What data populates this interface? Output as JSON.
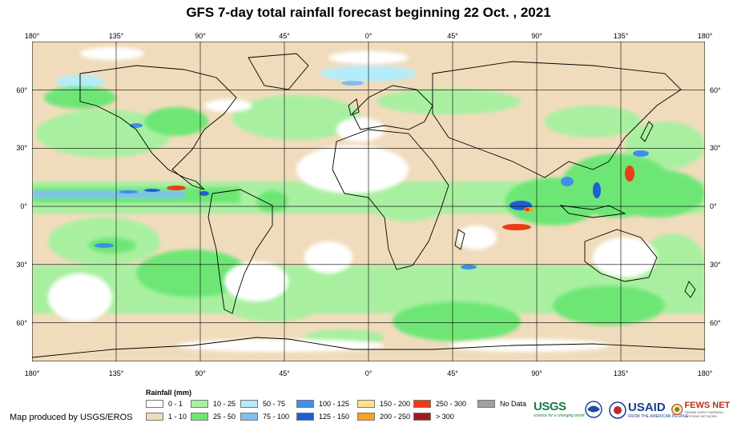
{
  "title": "GFS 7-day total rainfall forecast beginning 22 Oct. , 2021",
  "lon_labels": [
    "180°",
    "135°",
    "90°",
    "45°",
    "0°",
    "45°",
    "90°",
    "135°",
    "180°"
  ],
  "lat_labels": [
    "60°",
    "30°",
    "0°",
    "30°",
    "60°"
  ],
  "lat_values": [
    60,
    30,
    0,
    -30,
    -60
  ],
  "lon_values": [
    -180,
    -135,
    -90,
    -45,
    0,
    45,
    90,
    135,
    180
  ],
  "map_extent": {
    "lon": [
      -180,
      180
    ],
    "lat": [
      -80,
      85
    ]
  },
  "legend": {
    "title": "Rainfall (mm)",
    "items": [
      {
        "label": "0 - 1",
        "color": "#ffffff"
      },
      {
        "label": "1 - 10",
        "color": "#f0dcbc"
      },
      {
        "label": "10 - 25",
        "color": "#a8f0a0"
      },
      {
        "label": "25 - 50",
        "color": "#6ee676"
      },
      {
        "label": "50 - 75",
        "color": "#b4ecfa"
      },
      {
        "label": "75 - 100",
        "color": "#7fbdf2"
      },
      {
        "label": "100 - 125",
        "color": "#3f8fea"
      },
      {
        "label": "125 - 150",
        "color": "#1f5fd6"
      },
      {
        "label": "150 - 200",
        "color": "#fde38a"
      },
      {
        "label": "200 - 250",
        "color": "#f9a21c"
      },
      {
        "label": "250 - 300",
        "color": "#ee3a16"
      },
      {
        "label": "> 300",
        "color": "#9e1b1b"
      },
      {
        "label": "No Data",
        "color": "#a0a0a0"
      }
    ]
  },
  "credit": "Map produced by USGS/EROS",
  "logos": {
    "usgs": {
      "name": "USGS",
      "tagline": "science for a changing world"
    },
    "usaid": {
      "name": "USAID",
      "tagline": "FROM THE AMERICAN PEOPLE"
    },
    "fews": {
      "name": "FEWS NET",
      "tagline": "FAMINE EARLY WARNING SYSTEMS NETWORK"
    }
  }
}
